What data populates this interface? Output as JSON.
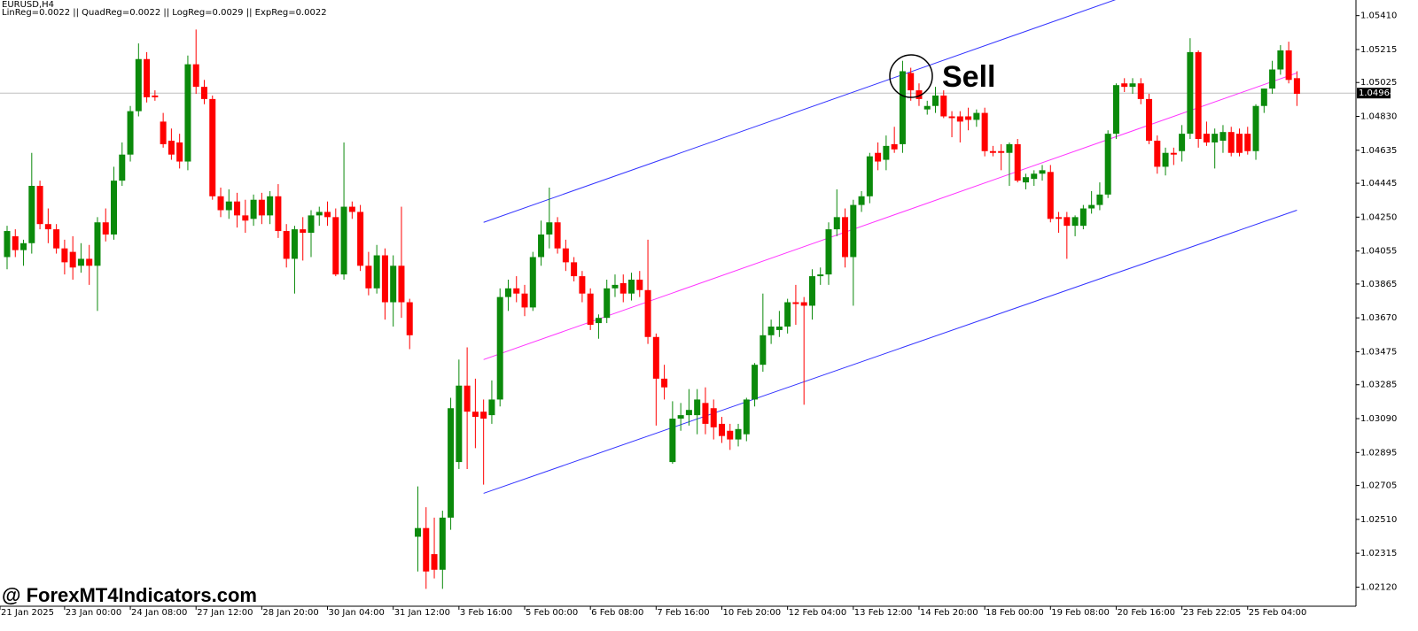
{
  "chart_data": {
    "type": "candlestick",
    "symbol": "EURUSD,H4",
    "indicator_text": "LinReg=0.0022 || QuadReg=0.0022 || LogReg=0.0029 || ExpReg=0.0022",
    "annotation": "Sell",
    "watermark": "@ ForexMT4Indicators.com",
    "up_color": "#0b8a0b",
    "down_color": "#ff0000",
    "ylim": [
      1.0201,
      1.055
    ],
    "yticks": [
      {
        "value": 1.0541,
        "label": "1.05410"
      },
      1.05215,
      1.05025,
      {
        "value": 1.0483,
        "label": "1.04830"
      },
      1.04635,
      1.04445,
      {
        "value": 1.0425,
        "label": "1.04250"
      },
      1.04055,
      1.03865,
      {
        "value": 1.0367,
        "label": "1.03670"
      },
      1.03475,
      1.03285,
      {
        "value": 1.0309,
        "label": "1.03090"
      },
      1.02895,
      1.02705,
      {
        "value": 1.0251,
        "label": "1.02510"
      },
      1.02315,
      {
        "value": 1.0212,
        "label": "1.02120"
      }
    ],
    "current_price": {
      "value": 1.04964,
      "label": "1.04964"
    },
    "regression": {
      "x": [
        58,
        157
      ],
      "middle": [
        1.0343,
        1.0508
      ],
      "upper": [
        1.0422,
        1.0587
      ],
      "lower": [
        1.0266,
        1.0429
      ],
      "middle_color": "#ff33ff",
      "band_color": "#3333ff"
    },
    "categories": [
      "21 Jan 2025",
      null,
      null,
      null,
      null,
      null,
      null,
      "23 Jan 00:00",
      null,
      null,
      null,
      null,
      null,
      null,
      null,
      "24 Jan 08:00",
      null,
      null,
      null,
      null,
      null,
      null,
      null,
      "27 Jan 12:00",
      null,
      null,
      null,
      null,
      null,
      null,
      null,
      "28 Jan 20:00",
      null,
      null,
      null,
      null,
      null,
      null,
      null,
      "30 Jan 04:00",
      null,
      null,
      null,
      null,
      null,
      null,
      null,
      "31 Jan 12:00",
      null,
      null,
      null,
      null,
      null,
      null,
      null,
      "3 Feb 16:00",
      null,
      null,
      null,
      null,
      null,
      null,
      null,
      "5 Feb 00:00",
      null,
      null,
      null,
      null,
      null,
      null,
      null,
      "6 Feb 08:00",
      null,
      null,
      null,
      null,
      null,
      null,
      null,
      "7 Feb 16:00",
      null,
      null,
      null,
      null,
      null,
      null,
      null,
      "10 Feb 20:00",
      null,
      null,
      null,
      null,
      null,
      null,
      null,
      "12 Feb 04:00",
      null,
      null,
      null,
      null,
      null,
      null,
      null,
      "13 Feb 12:00",
      null,
      null,
      null,
      null,
      null,
      null,
      null,
      "14 Feb 20:00",
      null,
      null,
      null,
      null,
      null,
      null,
      null,
      "18 Feb 00:00",
      null,
      null,
      null,
      null,
      null,
      null,
      null,
      "19 Feb 08:00",
      null,
      null,
      null,
      null,
      null,
      null,
      null,
      "20 Feb 16:00",
      null,
      null,
      null,
      null,
      null,
      null,
      null,
      "23 Feb 22:05",
      null,
      null,
      null,
      null,
      null,
      null,
      null,
      "25 Feb 04:00",
      null,
      null,
      null,
      null,
      null,
      null
    ],
    "candles": [
      [
        1.0402,
        1.042,
        1.0395,
        1.0417
      ],
      [
        1.0414,
        1.0418,
        1.0402,
        1.0406
      ],
      [
        1.0406,
        1.0412,
        1.0397,
        1.041
      ],
      [
        1.041,
        1.0462,
        1.0404,
        1.0443
      ],
      [
        1.0443,
        1.0446,
        1.0418,
        1.0421
      ],
      [
        1.0421,
        1.043,
        1.041,
        1.0418
      ],
      [
        1.0418,
        1.0421,
        1.0404,
        1.0407
      ],
      [
        1.0407,
        1.0412,
        1.0392,
        1.0399
      ],
      [
        1.0405,
        1.0414,
        1.0389,
        1.0396
      ],
      [
        1.0397,
        1.041,
        1.0393,
        1.0401
      ],
      [
        1.0401,
        1.0409,
        1.0386,
        1.0397
      ],
      [
        1.0397,
        1.0425,
        1.0371,
        1.0422
      ],
      [
        1.0422,
        1.043,
        1.0411,
        1.0415
      ],
      [
        1.0415,
        1.0454,
        1.0412,
        1.0446
      ],
      [
        1.0446,
        1.0468,
        1.0443,
        1.0461
      ],
      [
        1.0461,
        1.0489,
        1.0457,
        1.0486
      ],
      [
        1.0486,
        1.0525,
        1.0483,
        1.0516
      ],
      [
        1.0516,
        1.052,
        1.0491,
        1.0494
      ],
      [
        1.0495,
        1.0498,
        1.0492,
        1.0494
      ],
      [
        1.048,
        1.0485,
        1.0465,
        1.0467
      ],
      [
        1.0469,
        1.0476,
        1.0458,
        1.0461
      ],
      [
        1.0468,
        1.0473,
        1.0453,
        1.0457
      ],
      [
        1.0457,
        1.0518,
        1.0452,
        1.0513
      ],
      [
        1.0513,
        1.0533,
        1.0496,
        1.05
      ],
      [
        1.05,
        1.0504,
        1.049,
        1.0493
      ],
      [
        1.0493,
        1.0495,
        1.0435,
        1.0437
      ],
      [
        1.0437,
        1.0442,
        1.0425,
        1.0429
      ],
      [
        1.0429,
        1.0441,
        1.0424,
        1.0434
      ],
      [
        1.0434,
        1.0439,
        1.0419,
        1.0426
      ],
      [
        1.0426,
        1.0435,
        1.0416,
        1.0423
      ],
      [
        1.0424,
        1.0438,
        1.042,
        1.0435
      ],
      [
        1.0435,
        1.0439,
        1.0421,
        1.0426
      ],
      [
        1.0426,
        1.044,
        1.0421,
        1.0437
      ],
      [
        1.0437,
        1.0444,
        1.0413,
        1.0417
      ],
      [
        1.0417,
        1.0421,
        1.0396,
        1.0401
      ],
      [
        1.0401,
        1.042,
        1.0381,
        1.0418
      ],
      [
        1.0418,
        1.0425,
        1.04,
        1.0416
      ],
      [
        1.0416,
        1.0429,
        1.0402,
        1.0426
      ],
      [
        1.0426,
        1.0431,
        1.042,
        1.0428
      ],
      [
        1.0428,
        1.0434,
        1.042,
        1.0425
      ],
      [
        1.0425,
        1.043,
        1.0391,
        1.0392
      ],
      [
        1.0392,
        1.0468,
        1.0389,
        1.0431
      ],
      [
        1.0431,
        1.0434,
        1.0424,
        1.0428
      ],
      [
        1.0428,
        1.0432,
        1.0394,
        1.0397
      ],
      [
        1.0397,
        1.0405,
        1.038,
        1.0384
      ],
      [
        1.0384,
        1.0409,
        1.0381,
        1.0403
      ],
      [
        1.0403,
        1.0407,
        1.0366,
        1.0376
      ],
      [
        1.0376,
        1.0403,
        1.0362,
        1.0397
      ],
      [
        1.0397,
        1.0431,
        1.0367,
        1.0376
      ],
      [
        1.0376,
        1.0378,
        1.0349,
        1.0357
      ],
      [
        1.0241,
        1.027,
        1.0221,
        1.0246
      ],
      [
        1.0246,
        1.0258,
        1.0211,
        1.0221
      ],
      [
        1.0231,
        1.0252,
        1.0217,
        1.0222
      ],
      [
        1.0222,
        1.0256,
        1.0211,
        1.0252
      ],
      [
        1.0252,
        1.0321,
        1.0245,
        1.0315
      ],
      [
        1.0284,
        1.0343,
        1.028,
        1.0328
      ],
      [
        1.0328,
        1.035,
        1.028,
        1.0313
      ],
      [
        1.0313,
        1.0332,
        1.0292,
        1.031
      ],
      [
        1.0313,
        1.032,
        1.0271,
        1.0309
      ],
      [
        1.0311,
        1.0331,
        1.0306,
        1.032
      ],
      [
        1.032,
        1.0384,
        1.0316,
        1.0379
      ],
      [
        1.0379,
        1.0389,
        1.0371,
        1.0384
      ],
      [
        1.0384,
        1.0391,
        1.0376,
        1.0381
      ],
      [
        1.0381,
        1.0386,
        1.0368,
        1.0373
      ],
      [
        1.0373,
        1.0405,
        1.0371,
        1.0402
      ],
      [
        1.0402,
        1.0423,
        1.0397,
        1.0415
      ],
      [
        1.0415,
        1.0442,
        1.0407,
        1.0422
      ],
      [
        1.0422,
        1.0425,
        1.0404,
        1.0407
      ],
      [
        1.0407,
        1.0412,
        1.0394,
        1.0399
      ],
      [
        1.0399,
        1.0402,
        1.0388,
        1.0391
      ],
      [
        1.0391,
        1.0394,
        1.0376,
        1.0381
      ],
      [
        1.0381,
        1.0384,
        1.036,
        1.0363
      ],
      [
        1.0364,
        1.0369,
        1.0355,
        1.0367
      ],
      [
        1.0367,
        1.0389,
        1.0364,
        1.0384
      ],
      [
        1.0384,
        1.0392,
        1.0379,
        1.0386
      ],
      [
        1.0387,
        1.0392,
        1.0376,
        1.0381
      ],
      [
        1.0381,
        1.0393,
        1.0377,
        1.0389
      ],
      [
        1.0389,
        1.0394,
        1.0379,
        1.0383
      ],
      [
        1.0383,
        1.0412,
        1.0352,
        1.0356
      ],
      [
        1.0356,
        1.0358,
        1.0305,
        1.0332
      ],
      [
        1.0332,
        1.034,
        1.032,
        1.0327
      ],
      [
        1.0284,
        1.0319,
        1.0283,
        1.0309
      ],
      [
        1.0309,
        1.0318,
        1.0302,
        1.0311
      ],
      [
        1.0311,
        1.0326,
        1.0305,
        1.0314
      ],
      [
        1.0311,
        1.0326,
        1.03,
        1.032
      ],
      [
        1.0318,
        1.0327,
        1.03,
        1.0306
      ],
      [
        1.0315,
        1.032,
        1.0297,
        1.0304
      ],
      [
        1.0306,
        1.031,
        1.0295,
        1.0299
      ],
      [
        1.0302,
        1.0306,
        1.0291,
        1.0297
      ],
      [
        1.0297,
        1.0306,
        1.0293,
        1.0303
      ],
      [
        1.03,
        1.0321,
        1.0296,
        1.032
      ],
      [
        1.032,
        1.0341,
        1.0316,
        1.034
      ],
      [
        1.034,
        1.0381,
        1.0336,
        1.0357
      ],
      [
        1.0357,
        1.0366,
        1.0352,
        1.0362
      ],
      [
        1.036,
        1.0371,
        1.0356,
        1.0362
      ],
      [
        1.0362,
        1.0378,
        1.0358,
        1.0376
      ],
      [
        1.0376,
        1.0386,
        1.0363,
        1.0375
      ],
      [
        1.0376,
        1.0379,
        1.0317,
        1.0374
      ],
      [
        1.0374,
        1.0395,
        1.0366,
        1.0391
      ],
      [
        1.0391,
        1.0396,
        1.0386,
        1.0392
      ],
      [
        1.0392,
        1.0422,
        1.0386,
        1.0418
      ],
      [
        1.0418,
        1.0441,
        1.0414,
        1.0425
      ],
      [
        1.0425,
        1.043,
        1.0396,
        1.0402
      ],
      [
        1.0402,
        1.0435,
        1.0374,
        1.0432
      ],
      [
        1.0432,
        1.044,
        1.0428,
        1.0437
      ],
      [
        1.0437,
        1.0462,
        1.0433,
        1.046
      ],
      [
        1.0462,
        1.0468,
        1.0452,
        1.0457
      ],
      [
        1.0458,
        1.0472,
        1.0452,
        1.0466
      ],
      [
        1.0467,
        1.0477,
        1.0462,
        1.0464
      ],
      [
        1.0467,
        1.0515,
        1.0462,
        1.0509
      ],
      [
        1.0508,
        1.0511,
        1.0492,
        1.0498
      ],
      [
        1.0498,
        1.0502,
        1.0489,
        1.0493
      ],
      [
        1.0487,
        1.0492,
        1.0484,
        1.0489
      ],
      [
        1.0489,
        1.05,
        1.0485,
        1.0495
      ],
      [
        1.0495,
        1.0498,
        1.0482,
        1.0483
      ],
      [
        1.0483,
        1.0486,
        1.0471,
        1.0482
      ],
      [
        1.0483,
        1.0486,
        1.0468,
        1.048
      ],
      [
        1.0483,
        1.0488,
        1.0475,
        1.0481
      ],
      [
        1.0481,
        1.0487,
        1.0477,
        1.0485
      ],
      [
        1.0485,
        1.0488,
        1.046,
        1.0463
      ],
      [
        1.0463,
        1.0466,
        1.046,
        1.0462
      ],
      [
        1.0463,
        1.0467,
        1.0452,
        1.0462
      ],
      [
        1.0462,
        1.0468,
        1.0443,
        1.0467
      ],
      [
        1.0467,
        1.047,
        1.0445,
        1.0446
      ],
      [
        1.0445,
        1.045,
        1.0441,
        1.0448
      ],
      [
        1.0447,
        1.0452,
        1.0443,
        1.045
      ],
      [
        1.045,
        1.0455,
        1.0446,
        1.0452
      ],
      [
        1.0451,
        1.0455,
        1.0422,
        1.0424
      ],
      [
        1.0425,
        1.0428,
        1.0416,
        1.0424
      ],
      [
        1.0425,
        1.0428,
        1.0401,
        1.042
      ],
      [
        1.042,
        1.0426,
        1.0414,
        1.0425
      ],
      [
        1.042,
        1.0432,
        1.0418,
        1.043
      ],
      [
        1.043,
        1.044,
        1.0427,
        1.0432
      ],
      [
        1.0432,
        1.0445,
        1.0429,
        1.0438
      ],
      [
        1.0438,
        1.0475,
        1.0436,
        1.0473
      ],
      [
        1.0473,
        1.0502,
        1.047,
        1.0501
      ],
      [
        1.0502,
        1.0505,
        1.0497,
        1.05
      ],
      [
        1.05,
        1.0505,
        1.0496,
        1.0502
      ],
      [
        1.0502,
        1.0505,
        1.049,
        1.0493
      ],
      [
        1.0493,
        1.0496,
        1.0467,
        1.0469
      ],
      [
        1.0469,
        1.0472,
        1.045,
        1.0454
      ],
      [
        1.0454,
        1.0465,
        1.0449,
        1.0462
      ],
      [
        1.0462,
        1.0465,
        1.0455,
        1.0461
      ],
      [
        1.0463,
        1.0478,
        1.0457,
        1.0473
      ],
      [
        1.0473,
        1.0528,
        1.047,
        1.052
      ],
      [
        1.052,
        1.0521,
        1.0465,
        1.047
      ],
      [
        1.0473,
        1.048,
        1.0466,
        1.0468
      ],
      [
        1.0468,
        1.0476,
        1.0453,
        1.0473
      ],
      [
        1.0469,
        1.0478,
        1.0462,
        1.0474
      ],
      [
        1.0474,
        1.0477,
        1.046,
        1.0462
      ],
      [
        1.0473,
        1.0476,
        1.046,
        1.0462
      ],
      [
        1.0473,
        1.0477,
        1.0461,
        1.0463
      ],
      [
        1.0463,
        1.049,
        1.0458,
        1.0489
      ],
      [
        1.0489,
        1.0499,
        1.0485,
        1.0499
      ],
      [
        1.0499,
        1.0515,
        1.0496,
        1.051
      ],
      [
        1.051,
        1.0524,
        1.0507,
        1.0521
      ],
      [
        1.0521,
        1.0526,
        1.0502,
        1.0504
      ],
      [
        1.0505,
        1.0509,
        1.0489,
        1.0496
      ]
    ]
  }
}
